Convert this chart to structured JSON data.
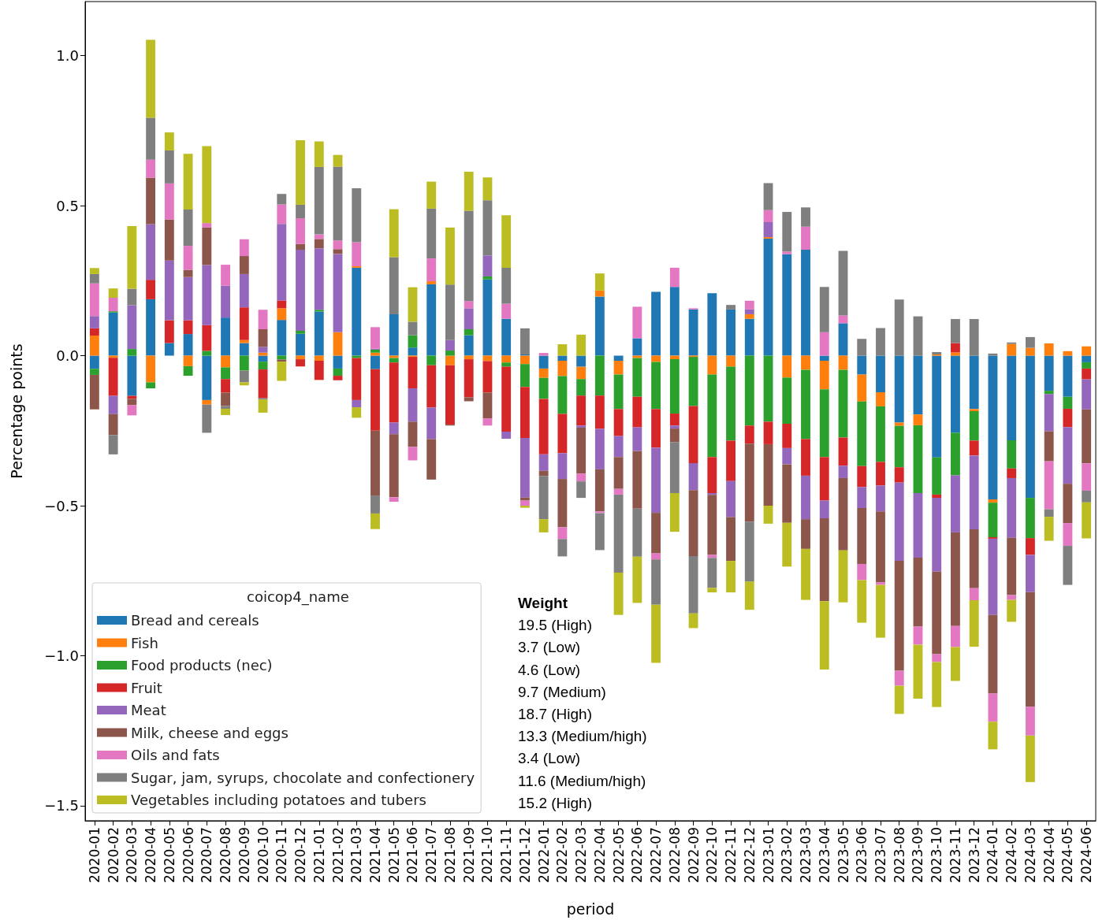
{
  "chart_data": {
    "type": "bar",
    "stacked": true,
    "xlabel": "period",
    "ylabel": "Percentage points",
    "legend_title": "coicop4_name",
    "legend": "bottom left",
    "ylim": [
      -1.55,
      1.18
    ],
    "yticks": [
      {
        "value": -1.5,
        "label": "−1.5"
      },
      {
        "value": -1.0,
        "label": "−1.0"
      },
      {
        "value": -0.5,
        "label": "−0.5"
      },
      {
        "value": 0,
        "label": "0.0"
      },
      0.5,
      {
        "value": 1.0,
        "label": "1.0"
      }
    ],
    "categories": [
      "2020-01",
      "2020-02",
      "2020-03",
      "2020-04",
      "2020-05",
      "2020-06",
      "2020-07",
      "2020-08",
      "2020-09",
      "2020-10",
      "2020-11",
      "2020-12",
      "2021-01",
      "2021-02",
      "2021-03",
      "2021-04",
      "2021-05",
      "2021-06",
      "2021-07",
      "2021-08",
      "2021-09",
      "2021-10",
      "2021-11",
      "2021-12",
      "2022-01",
      "2022-02",
      "2022-03",
      "2022-04",
      "2022-05",
      "2022-06",
      "2022-07",
      "2022-08",
      "2022-09",
      "2022-10",
      "2022-11",
      "2022-12",
      "2023-01",
      "2023-02",
      "2023-03",
      "2023-04",
      "2023-05",
      "2023-06",
      "2023-07",
      "2023-08",
      "2023-09",
      "2023-10",
      "2023-11",
      "2023-12",
      "2024-01",
      "2024-02",
      "2024-03",
      "2024-04",
      "2024-05",
      "2024-06"
    ],
    "series": [
      {
        "name": "Bread and cereals",
        "color": "#1f77b4",
        "values": [
          -0.044,
          0.144,
          -0.134,
          0.188,
          0.042,
          0.072,
          -0.148,
          0.127,
          0.042,
          -0.02,
          0.119,
          0.073,
          0.147,
          -0.043,
          0.293,
          -0.045,
          0.138,
          0.027,
          0.238,
          0,
          0.068,
          0.254,
          0.123,
          0.004,
          -0.043,
          -0.017,
          -0.037,
          0.197,
          -0.017,
          0.058,
          0.213,
          0.229,
          0.154,
          0.208,
          0.154,
          0.123,
          0.39,
          0.338,
          0.353,
          -0.017,
          0.108,
          -0.063,
          -0.122,
          -0.223,
          -0.196,
          -0.339,
          -0.257,
          -0.178,
          -0.479,
          -0.282,
          -0.474,
          -0.117,
          -0.137,
          -0.022
        ]
      },
      {
        "name": "Fish",
        "color": "#ff7f0e",
        "values": [
          0.067,
          -0.007,
          0,
          -0.089,
          0,
          -0.035,
          -0.015,
          -0.039,
          0.01,
          0.01,
          0.039,
          -0.012,
          -0.017,
          0.078,
          0.005,
          0.01,
          -0.008,
          -0.004,
          0.01,
          -0.032,
          -0.012,
          -0.018,
          -0.023,
          -0.028,
          -0.031,
          -0.051,
          -0.041,
          0.02,
          -0.046,
          -0.008,
          -0.021,
          -0.012,
          -0.004,
          -0.063,
          -0.037,
          0.015,
          0.005,
          -0.073,
          -0.047,
          -0.095,
          -0.047,
          -0.09,
          -0.047,
          -0.011,
          -0.036,
          0.004,
          0.011,
          -0.007,
          -0.011,
          0.039,
          0.026,
          0.041,
          0.015,
          0.031
        ]
      },
      {
        "name": "Food products (nec)",
        "color": "#2ca02c",
        "values": [
          -0.02,
          0.004,
          0.022,
          -0.02,
          0,
          -0.032,
          0.016,
          -0.039,
          -0.05,
          -0.026,
          -0.013,
          0.01,
          0.006,
          -0.024,
          -0.008,
          0.01,
          -0.015,
          0.041,
          -0.032,
          0.017,
          0.02,
          0.01,
          -0.014,
          -0.076,
          -0.07,
          -0.126,
          -0.055,
          -0.133,
          -0.115,
          -0.129,
          -0.157,
          -0.181,
          -0.164,
          -0.275,
          -0.246,
          -0.233,
          -0.22,
          -0.154,
          -0.231,
          -0.226,
          -0.226,
          -0.215,
          -0.185,
          -0.138,
          -0.226,
          -0.124,
          -0.142,
          -0.098,
          -0.115,
          -0.094,
          -0.134,
          -0.011,
          -0.04,
          -0.021
        ]
      },
      {
        "name": "Fruit",
        "color": "#d62728",
        "values": [
          0.024,
          -0.127,
          -0.01,
          0.065,
          0.076,
          0.046,
          0.086,
          -0.045,
          0.109,
          -0.096,
          0.026,
          -0.024,
          -0.064,
          -0.015,
          -0.14,
          -0.205,
          -0.2,
          -0.105,
          -0.141,
          -0.198,
          -0.127,
          -0.105,
          -0.216,
          -0.17,
          -0.185,
          -0.131,
          -0.1,
          -0.111,
          -0.09,
          -0.102,
          -0.129,
          -0.04,
          -0.19,
          -0.12,
          -0.135,
          -0.06,
          -0.075,
          -0.081,
          -0.122,
          -0.145,
          -0.094,
          -0.07,
          -0.079,
          -0.051,
          0,
          -0.011,
          0.031,
          -0.05,
          -0.005,
          -0.032,
          -0.056,
          0,
          -0.061,
          -0.036
        ]
      },
      {
        "name": "Meat",
        "color": "#9467bd",
        "values": [
          0.041,
          -0.061,
          0.146,
          0.185,
          0.199,
          0.144,
          0.2,
          0.106,
          0.111,
          0.019,
          0.255,
          0.27,
          0.205,
          0.261,
          -0.024,
          0.003,
          -0.039,
          -0.111,
          -0.105,
          0.035,
          0.07,
          0.07,
          -0.024,
          -0.199,
          -0.055,
          -0.086,
          -0.007,
          -0.135,
          -0.07,
          -0.079,
          -0.217,
          -0.01,
          -0.09,
          -0.006,
          -0.12,
          0.016,
          0.05,
          -0.054,
          -0.145,
          -0.059,
          -0.041,
          -0.07,
          -0.086,
          -0.261,
          -0.215,
          -0.246,
          -0.19,
          -0.246,
          -0.254,
          -0.199,
          -0.124,
          -0.124,
          -0.189,
          -0.1
        ]
      },
      {
        "name": "Milk, cheese and eggs",
        "color": "#8c564b",
        "values": [
          -0.115,
          -0.07,
          -0.021,
          0.155,
          0.137,
          0.024,
          0.125,
          -0.045,
          0.06,
          0.059,
          -0.007,
          0.019,
          0.031,
          0.016,
          0,
          -0.216,
          -0.21,
          -0.084,
          -0.135,
          -0.003,
          -0.013,
          -0.086,
          0,
          -0.01,
          -0.017,
          -0.161,
          -0.153,
          -0.14,
          -0.106,
          -0.192,
          -0.135,
          -0.045,
          -0.22,
          -0.2,
          -0.146,
          -0.26,
          -0.205,
          -0.195,
          -0.099,
          -0.276,
          -0.241,
          -0.186,
          -0.236,
          -0.366,
          -0.23,
          -0.275,
          -0.312,
          -0.196,
          -0.262,
          -0.191,
          -0.382,
          -0.1,
          -0.131,
          -0.18
        ]
      },
      {
        "name": "Oils and fats",
        "color": "#e377c2",
        "values": [
          0.109,
          0.045,
          -0.034,
          0.06,
          0.12,
          0.08,
          0.015,
          0.07,
          0.056,
          0.065,
          0.065,
          0.086,
          0.015,
          0.029,
          0.08,
          0.072,
          -0.015,
          -0.045,
          0.076,
          0,
          0.024,
          -0.024,
          0.05,
          -0.017,
          0.009,
          -0.039,
          -0.026,
          -0.006,
          -0.019,
          0.105,
          -0.02,
          0.064,
          0.004,
          -0.01,
          0,
          0.029,
          0.04,
          0.009,
          0.077,
          0.078,
          0.026,
          -0.054,
          -0.009,
          -0.05,
          -0.06,
          -0.026,
          -0.07,
          -0.04,
          -0.094,
          -0.016,
          -0.096,
          -0.16,
          -0.076,
          -0.091
        ]
      },
      {
        "name": "Sugar, jam, syrups, chocolate and confectionery",
        "color": "#7f7f7f",
        "values": [
          0.031,
          -0.064,
          0.055,
          0.14,
          0.11,
          0.121,
          -0.094,
          -0.009,
          -0.039,
          -0.004,
          0.035,
          0.045,
          0.225,
          0.246,
          0.18,
          -0.06,
          0.19,
          0.045,
          0.166,
          0.185,
          0.301,
          0.184,
          0.12,
          0.087,
          -0.144,
          -0.058,
          -0.055,
          -0.123,
          -0.26,
          -0.16,
          -0.151,
          -0.17,
          -0.191,
          -0.1,
          0.015,
          -0.2,
          0.09,
          0.132,
          0.064,
          0.151,
          0.215,
          0.056,
          0.092,
          0.187,
          0.131,
          0.008,
          0.08,
          0.122,
          0.007,
          0.005,
          0.036,
          -0.025,
          -0.13,
          -0.039
        ]
      },
      {
        "name": "Vegetables including potatoes and tubers",
        "color": "#bcbd22",
        "values": [
          0.02,
          0.031,
          0.209,
          0.26,
          0.06,
          0.186,
          0.256,
          -0.021,
          -0.01,
          -0.044,
          -0.064,
          0.215,
          0.085,
          0.039,
          -0.035,
          -0.052,
          0.16,
          0.115,
          0.09,
          0.19,
          0.13,
          0.076,
          0.175,
          -0.007,
          -0.044,
          0.038,
          0.07,
          0.057,
          -0.141,
          -0.154,
          -0.194,
          -0.129,
          -0.049,
          -0.015,
          -0.105,
          -0.094,
          -0.06,
          -0.146,
          -0.17,
          -0.228,
          -0.173,
          -0.142,
          -0.176,
          -0.094,
          -0.18,
          -0.15,
          -0.113,
          -0.155,
          -0.092,
          -0.073,
          -0.155,
          -0.08,
          0,
          -0.12
        ]
      }
    ],
    "annotations": [
      "Weight",
      "19.5 (High)",
      "3.7 (Low)",
      "4.6 (Low)",
      "9.7 (Medium)",
      "18.7 (High)",
      "13.3 (Medium/high)",
      "3.4 (Low)",
      "11.6 (Medium/high)",
      "15.2 (High)"
    ]
  }
}
